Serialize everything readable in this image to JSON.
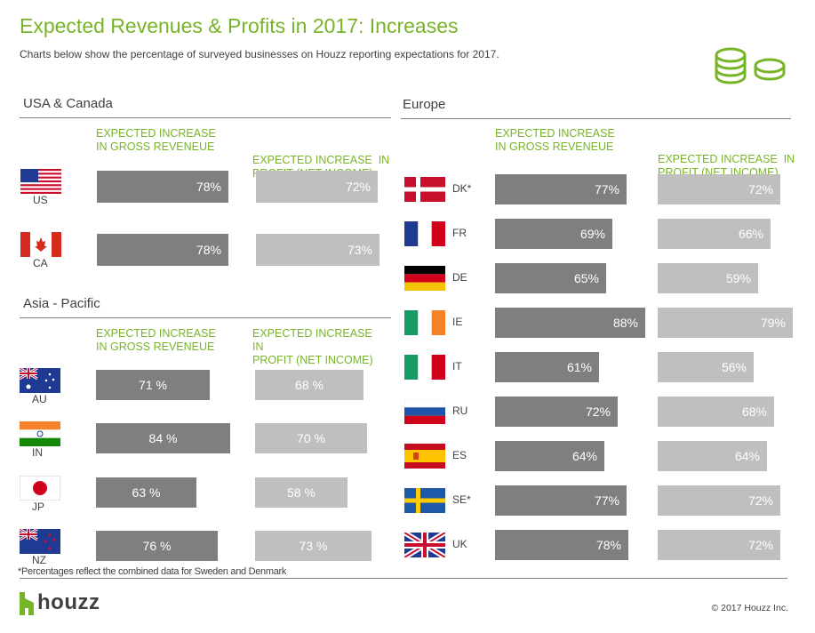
{
  "title": "Expected Revenues & Profits in 2017: Increases",
  "subtitle": "Charts below show the percentage of surveyed businesses on Houzz reporting expectations for 2017.",
  "colors": {
    "accent": "#78b428",
    "gross_bar": "#7f7f7f",
    "profit_bar": "#bfbfbf"
  },
  "sections": {
    "usa": {
      "title": "USA & Canada",
      "gross_header": [
        "EXPECTED INCREASE",
        "IN GROSS REVENEUE"
      ],
      "profit_header": [
        "EXPECTED INCREASE  IN",
        "PROFIT (NET INCOME)"
      ]
    },
    "asia": {
      "title": "Asia - Pacific",
      "gross_header": [
        "EXPECTED INCREASE",
        "IN GROSS REVENEUE"
      ],
      "profit_header": [
        "EXPECTED INCREASE",
        "IN",
        "PROFIT (NET INCOME)"
      ]
    },
    "europe": {
      "title": "Europe",
      "gross_header": [
        "EXPECTED INCREASE",
        "IN GROSS REVENEUE"
      ],
      "profit_header": [
        "EXPECTED INCREASE  IN",
        "PROFIT (NET INCOME)"
      ]
    }
  },
  "chart_data": [
    {
      "type": "bar",
      "title": "USA & Canada",
      "categories": [
        "US",
        "CA"
      ],
      "series": [
        {
          "name": "EXPECTED INCREASE IN GROSS REVENEUE",
          "values": [
            78,
            78
          ],
          "labels": [
            "78%",
            "78%"
          ]
        },
        {
          "name": "EXPECTED INCREASE IN PROFIT (NET INCOME)",
          "values": [
            72,
            73
          ],
          "labels": [
            "72%",
            "73%"
          ]
        }
      ],
      "ylim": [
        0,
        100
      ]
    },
    {
      "type": "bar",
      "title": "Asia - Pacific",
      "categories": [
        "AU",
        "IN",
        "JP",
        "NZ"
      ],
      "series": [
        {
          "name": "EXPECTED INCREASE IN GROSS REVENEUE",
          "values": [
            71,
            84,
            63,
            76
          ],
          "labels": [
            "71 %",
            "84 %",
            "63 %",
            "76 %"
          ]
        },
        {
          "name": "EXPECTED INCREASE IN PROFIT (NET INCOME)",
          "values": [
            68,
            70,
            58,
            73
          ],
          "labels": [
            "68 %",
            "70 %",
            "58 %",
            "73 %"
          ]
        }
      ],
      "ylim": [
        0,
        100
      ]
    },
    {
      "type": "bar",
      "title": "Europe",
      "categories": [
        "DK*",
        "FR",
        "DE",
        "IE",
        "IT",
        "RU",
        "ES",
        "SE*",
        "UK"
      ],
      "series": [
        {
          "name": "EXPECTED INCREASE IN GROSS REVENEUE",
          "values": [
            77,
            69,
            65,
            88,
            61,
            72,
            64,
            77,
            78
          ],
          "labels": [
            "77%",
            "69%",
            "65%",
            "88%",
            "61%",
            "72%",
            "64%",
            "77%",
            "78%"
          ]
        },
        {
          "name": "EXPECTED INCREASE IN PROFIT (NET INCOME)",
          "values": [
            72,
            66,
            59,
            79,
            56,
            68,
            64,
            72,
            72
          ],
          "labels": [
            "72%",
            "66%",
            "59%",
            "79%",
            "56%",
            "68%",
            "64%",
            "72%",
            "72%"
          ]
        }
      ],
      "ylim": [
        0,
        100
      ]
    }
  ],
  "footnote": "*Percentages reflect the combined data for Sweden and Denmark",
  "brand": "houzz",
  "copyright": "© 2017 Houzz Inc."
}
